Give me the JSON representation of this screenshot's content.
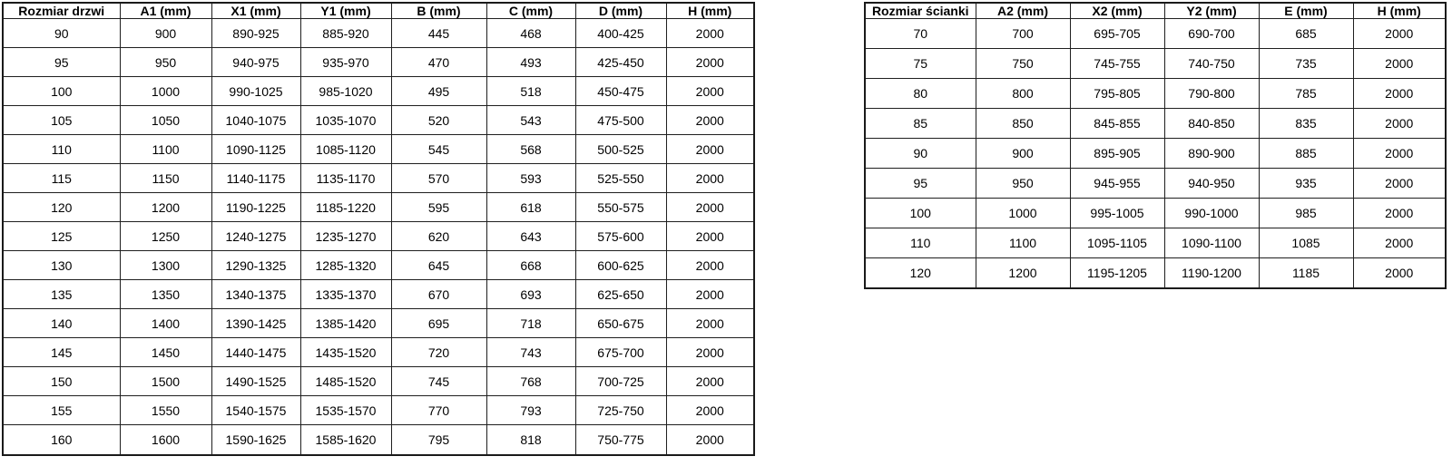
{
  "colors": {
    "border": "#1f1f1f",
    "text": "#000000",
    "background": "#ffffff"
  },
  "tables": [
    {
      "name": "door-size-table",
      "headers": [
        "Rozmiar drzwi",
        "A1 (mm)",
        "X1 (mm)",
        "Y1 (mm)",
        "B (mm)",
        "C (mm)",
        "D (mm)",
        "H (mm)"
      ],
      "rows": [
        [
          "90",
          "900",
          "890-925",
          "885-920",
          "445",
          "468",
          "400-425",
          "2000"
        ],
        [
          "95",
          "950",
          "940-975",
          "935-970",
          "470",
          "493",
          "425-450",
          "2000"
        ],
        [
          "100",
          "1000",
          "990-1025",
          "985-1020",
          "495",
          "518",
          "450-475",
          "2000"
        ],
        [
          "105",
          "1050",
          "1040-1075",
          "1035-1070",
          "520",
          "543",
          "475-500",
          "2000"
        ],
        [
          "110",
          "1100",
          "1090-1125",
          "1085-1120",
          "545",
          "568",
          "500-525",
          "2000"
        ],
        [
          "115",
          "1150",
          "1140-1175",
          "1135-1170",
          "570",
          "593",
          "525-550",
          "2000"
        ],
        [
          "120",
          "1200",
          "1190-1225",
          "1185-1220",
          "595",
          "618",
          "550-575",
          "2000"
        ],
        [
          "125",
          "1250",
          "1240-1275",
          "1235-1270",
          "620",
          "643",
          "575-600",
          "2000"
        ],
        [
          "130",
          "1300",
          "1290-1325",
          "1285-1320",
          "645",
          "668",
          "600-625",
          "2000"
        ],
        [
          "135",
          "1350",
          "1340-1375",
          "1335-1370",
          "670",
          "693",
          "625-650",
          "2000"
        ],
        [
          "140",
          "1400",
          "1390-1425",
          "1385-1420",
          "695",
          "718",
          "650-675",
          "2000"
        ],
        [
          "145",
          "1450",
          "1440-1475",
          "1435-1520",
          "720",
          "743",
          "675-700",
          "2000"
        ],
        [
          "150",
          "1500",
          "1490-1525",
          "1485-1520",
          "745",
          "768",
          "700-725",
          "2000"
        ],
        [
          "155",
          "1550",
          "1540-1575",
          "1535-1570",
          "770",
          "793",
          "725-750",
          "2000"
        ],
        [
          "160",
          "1600",
          "1590-1625",
          "1585-1620",
          "795",
          "818",
          "750-775",
          "2000"
        ]
      ]
    },
    {
      "name": "wall-size-table",
      "headers": [
        "Rozmiar ścianki",
        "A2 (mm)",
        "X2 (mm)",
        "Y2 (mm)",
        "E (mm)",
        "H (mm)"
      ],
      "rows": [
        [
          "70",
          "700",
          "695-705",
          "690-700",
          "685",
          "2000"
        ],
        [
          "75",
          "750",
          "745-755",
          "740-750",
          "735",
          "2000"
        ],
        [
          "80",
          "800",
          "795-805",
          "790-800",
          "785",
          "2000"
        ],
        [
          "85",
          "850",
          "845-855",
          "840-850",
          "835",
          "2000"
        ],
        [
          "90",
          "900",
          "895-905",
          "890-900",
          "885",
          "2000"
        ],
        [
          "95",
          "950",
          "945-955",
          "940-950",
          "935",
          "2000"
        ],
        [
          "100",
          "1000",
          "995-1005",
          "990-1000",
          "985",
          "2000"
        ],
        [
          "110",
          "1100",
          "1095-1105",
          "1090-1100",
          "1085",
          "2000"
        ],
        [
          "120",
          "1200",
          "1195-1205",
          "1190-1200",
          "1185",
          "2000"
        ]
      ]
    }
  ]
}
